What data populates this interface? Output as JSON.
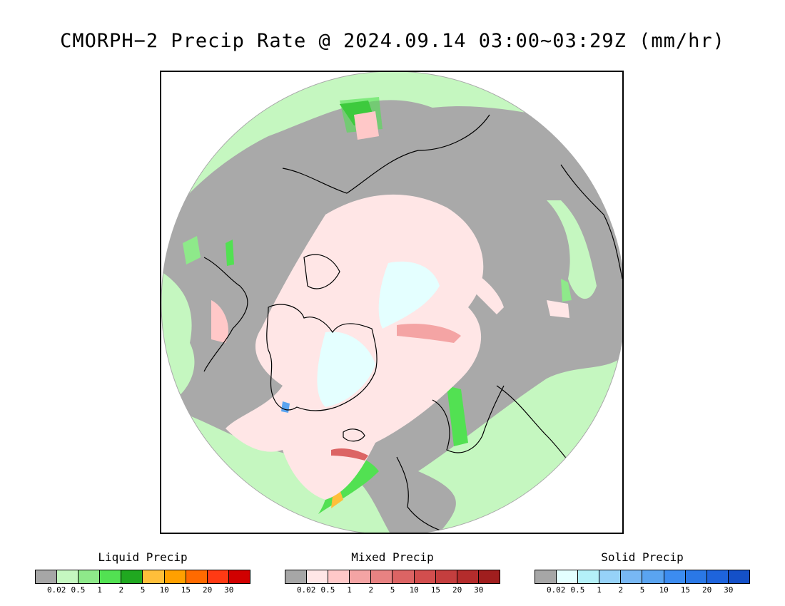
{
  "title": "CMORPH−2 Precip Rate @ 2024.09.14 03:00~03:29Z (mm/hr)",
  "map": {
    "projection": "north-polar-stereographic",
    "background": "#a9a9a9",
    "coastline_color": "#000000"
  },
  "legends": [
    {
      "id": "liquid",
      "title": "Liquid Precip",
      "colors": [
        "#a6a6a6",
        "#c5f7c0",
        "#8ee98a",
        "#52e152",
        "#20a820",
        "#ffbf3a",
        "#ffa000",
        "#ff6a00",
        "#ff3a14",
        "#d10000"
      ],
      "ticks": [
        "0.02",
        "0.5",
        "1",
        "2",
        "5",
        "10",
        "15",
        "20",
        "30"
      ]
    },
    {
      "id": "mixed",
      "title": "Mixed Precip",
      "colors": [
        "#a6a6a6",
        "#ffe6e6",
        "#ffc8c8",
        "#f4a4a4",
        "#e88282",
        "#dc6464",
        "#d24e4e",
        "#c43e3e",
        "#b42c2c",
        "#a01e1e"
      ],
      "ticks": [
        "0.02",
        "0.5",
        "1",
        "2",
        "5",
        "10",
        "15",
        "20",
        "30"
      ]
    },
    {
      "id": "solid",
      "title": "Solid Precip",
      "colors": [
        "#a6a6a6",
        "#e4ffff",
        "#b4f0f8",
        "#96d2f8",
        "#78b8f4",
        "#5aa4f0",
        "#3c8cf0",
        "#2a78e6",
        "#1e64dc",
        "#1450c8"
      ],
      "ticks": [
        "0.02",
        "0.5",
        "1",
        "2",
        "5",
        "10",
        "15",
        "20",
        "30"
      ]
    }
  ]
}
